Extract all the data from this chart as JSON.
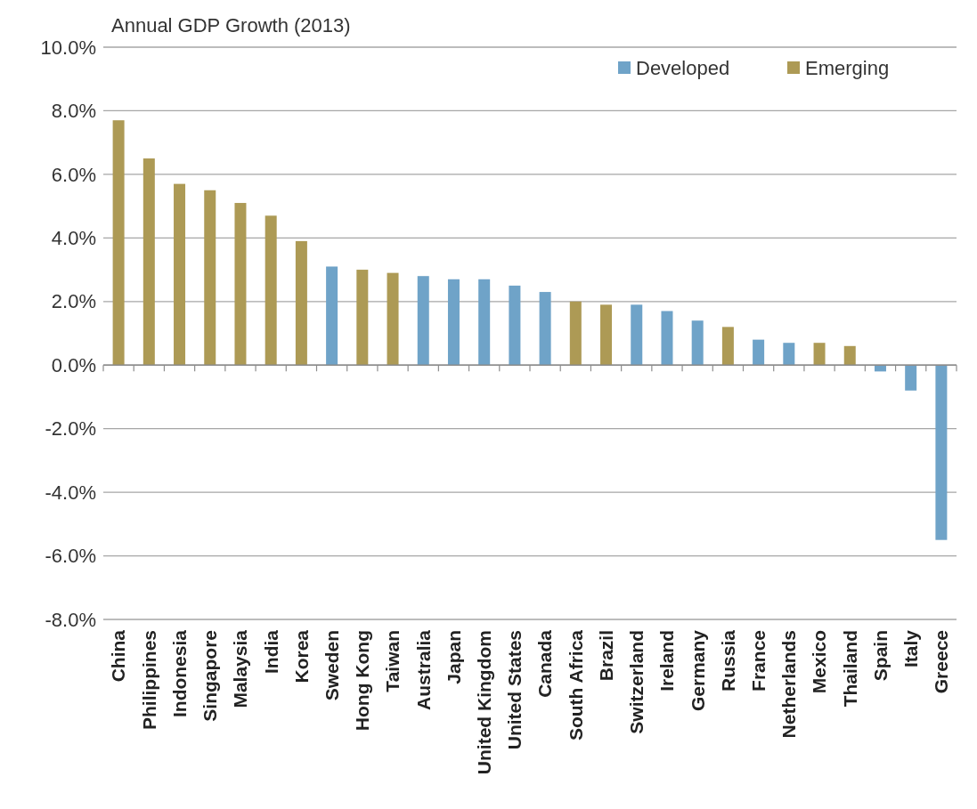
{
  "chart_data": {
    "type": "bar",
    "title": "Annual GDP Growth (2013)",
    "stacked": true,
    "categories": [
      "China",
      "Philippines",
      "Indonesia",
      "Singapore",
      "Malaysia",
      "India",
      "Korea",
      "Sweden",
      "Hong Kong",
      "Taiwan",
      "Australia",
      "Japan",
      "United Kingdom",
      "United States",
      "Canada",
      "South Africa",
      "Brazil",
      "Switzerland",
      "Ireland",
      "Germany",
      "Russia",
      "France",
      "Netherlands",
      "Mexico",
      "Thailand",
      "Spain",
      "Italy",
      "Greece"
    ],
    "series": [
      {
        "name": "Developed",
        "color": "#6fa3c8",
        "values": [
          null,
          null,
          null,
          null,
          null,
          null,
          null,
          3.1,
          null,
          null,
          2.8,
          2.7,
          2.7,
          2.5,
          2.3,
          null,
          null,
          1.9,
          1.7,
          1.4,
          null,
          0.8,
          0.7,
          null,
          null,
          -0.2,
          -0.8,
          -5.5
        ]
      },
      {
        "name": "Emerging",
        "color": "#ad9a55",
        "values": [
          7.7,
          6.5,
          5.7,
          5.5,
          5.1,
          4.7,
          3.9,
          null,
          3.0,
          2.9,
          null,
          null,
          null,
          null,
          null,
          2.0,
          1.9,
          null,
          null,
          null,
          1.2,
          null,
          null,
          0.7,
          0.6,
          null,
          null,
          null
        ]
      }
    ],
    "ylim": [
      -8,
      10
    ],
    "yticks": [
      {
        "value": -8,
        "label": "-8.0%"
      },
      {
        "value": -6,
        "label": "-6.0%"
      },
      {
        "value": -4,
        "label": "-4.0%"
      },
      {
        "value": -2,
        "label": "-2.0%"
      },
      {
        "value": 0,
        "label": "0.0%"
      },
      {
        "value": 2,
        "label": "2.0%"
      },
      {
        "value": 4,
        "label": "4.0%"
      },
      {
        "value": 6,
        "label": "6.0%"
      },
      {
        "value": 8,
        "label": "8.0%"
      },
      {
        "value": 10,
        "label": "10.0%"
      }
    ],
    "grid": "y",
    "legend": "top right"
  }
}
